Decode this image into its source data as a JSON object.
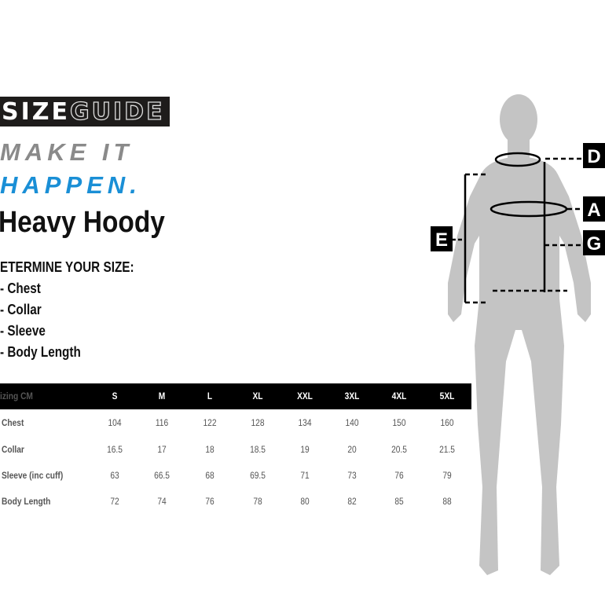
{
  "logo": {
    "part1": "SIZE",
    "part2": "GUIDE"
  },
  "tagline": {
    "line1": "MAKE IT",
    "line2": "HAPPEN."
  },
  "product_title": "Heavy Hoody",
  "determine": {
    "heading": "ETERMINE YOUR SIZE:",
    "items": [
      "- Chest",
      "- Collar",
      "- Sleeve",
      "- Body Length"
    ]
  },
  "table": {
    "header_label": "izing CM",
    "sizes": [
      "S",
      "M",
      "L",
      "XL",
      "XXL",
      "3XL",
      "4XL",
      "5XL"
    ],
    "rows": [
      {
        "label": "Chest",
        "values": [
          "104",
          "116",
          "122",
          "128",
          "134",
          "140",
          "150",
          "160"
        ]
      },
      {
        "label": "Collar",
        "values": [
          "16.5",
          "17",
          "18",
          "18.5",
          "19",
          "20",
          "20.5",
          "21.5"
        ]
      },
      {
        "label": "Sleeve (inc cuff)",
        "values": [
          "63",
          "66.5",
          "68",
          "69.5",
          "71",
          "73",
          "76",
          "79"
        ]
      },
      {
        "label": "Body Length",
        "values": [
          "72",
          "74",
          "76",
          "78",
          "80",
          "82",
          "85",
          "88"
        ]
      }
    ]
  },
  "diagram": {
    "labels": {
      "D": "D",
      "A": "A",
      "G": "G",
      "E": "E"
    }
  },
  "colors": {
    "accent_blue": "#1a8fd6",
    "tag_grey": "#8a8a8a",
    "silhouette": "#c4c4c4",
    "header_black": "#000000"
  }
}
